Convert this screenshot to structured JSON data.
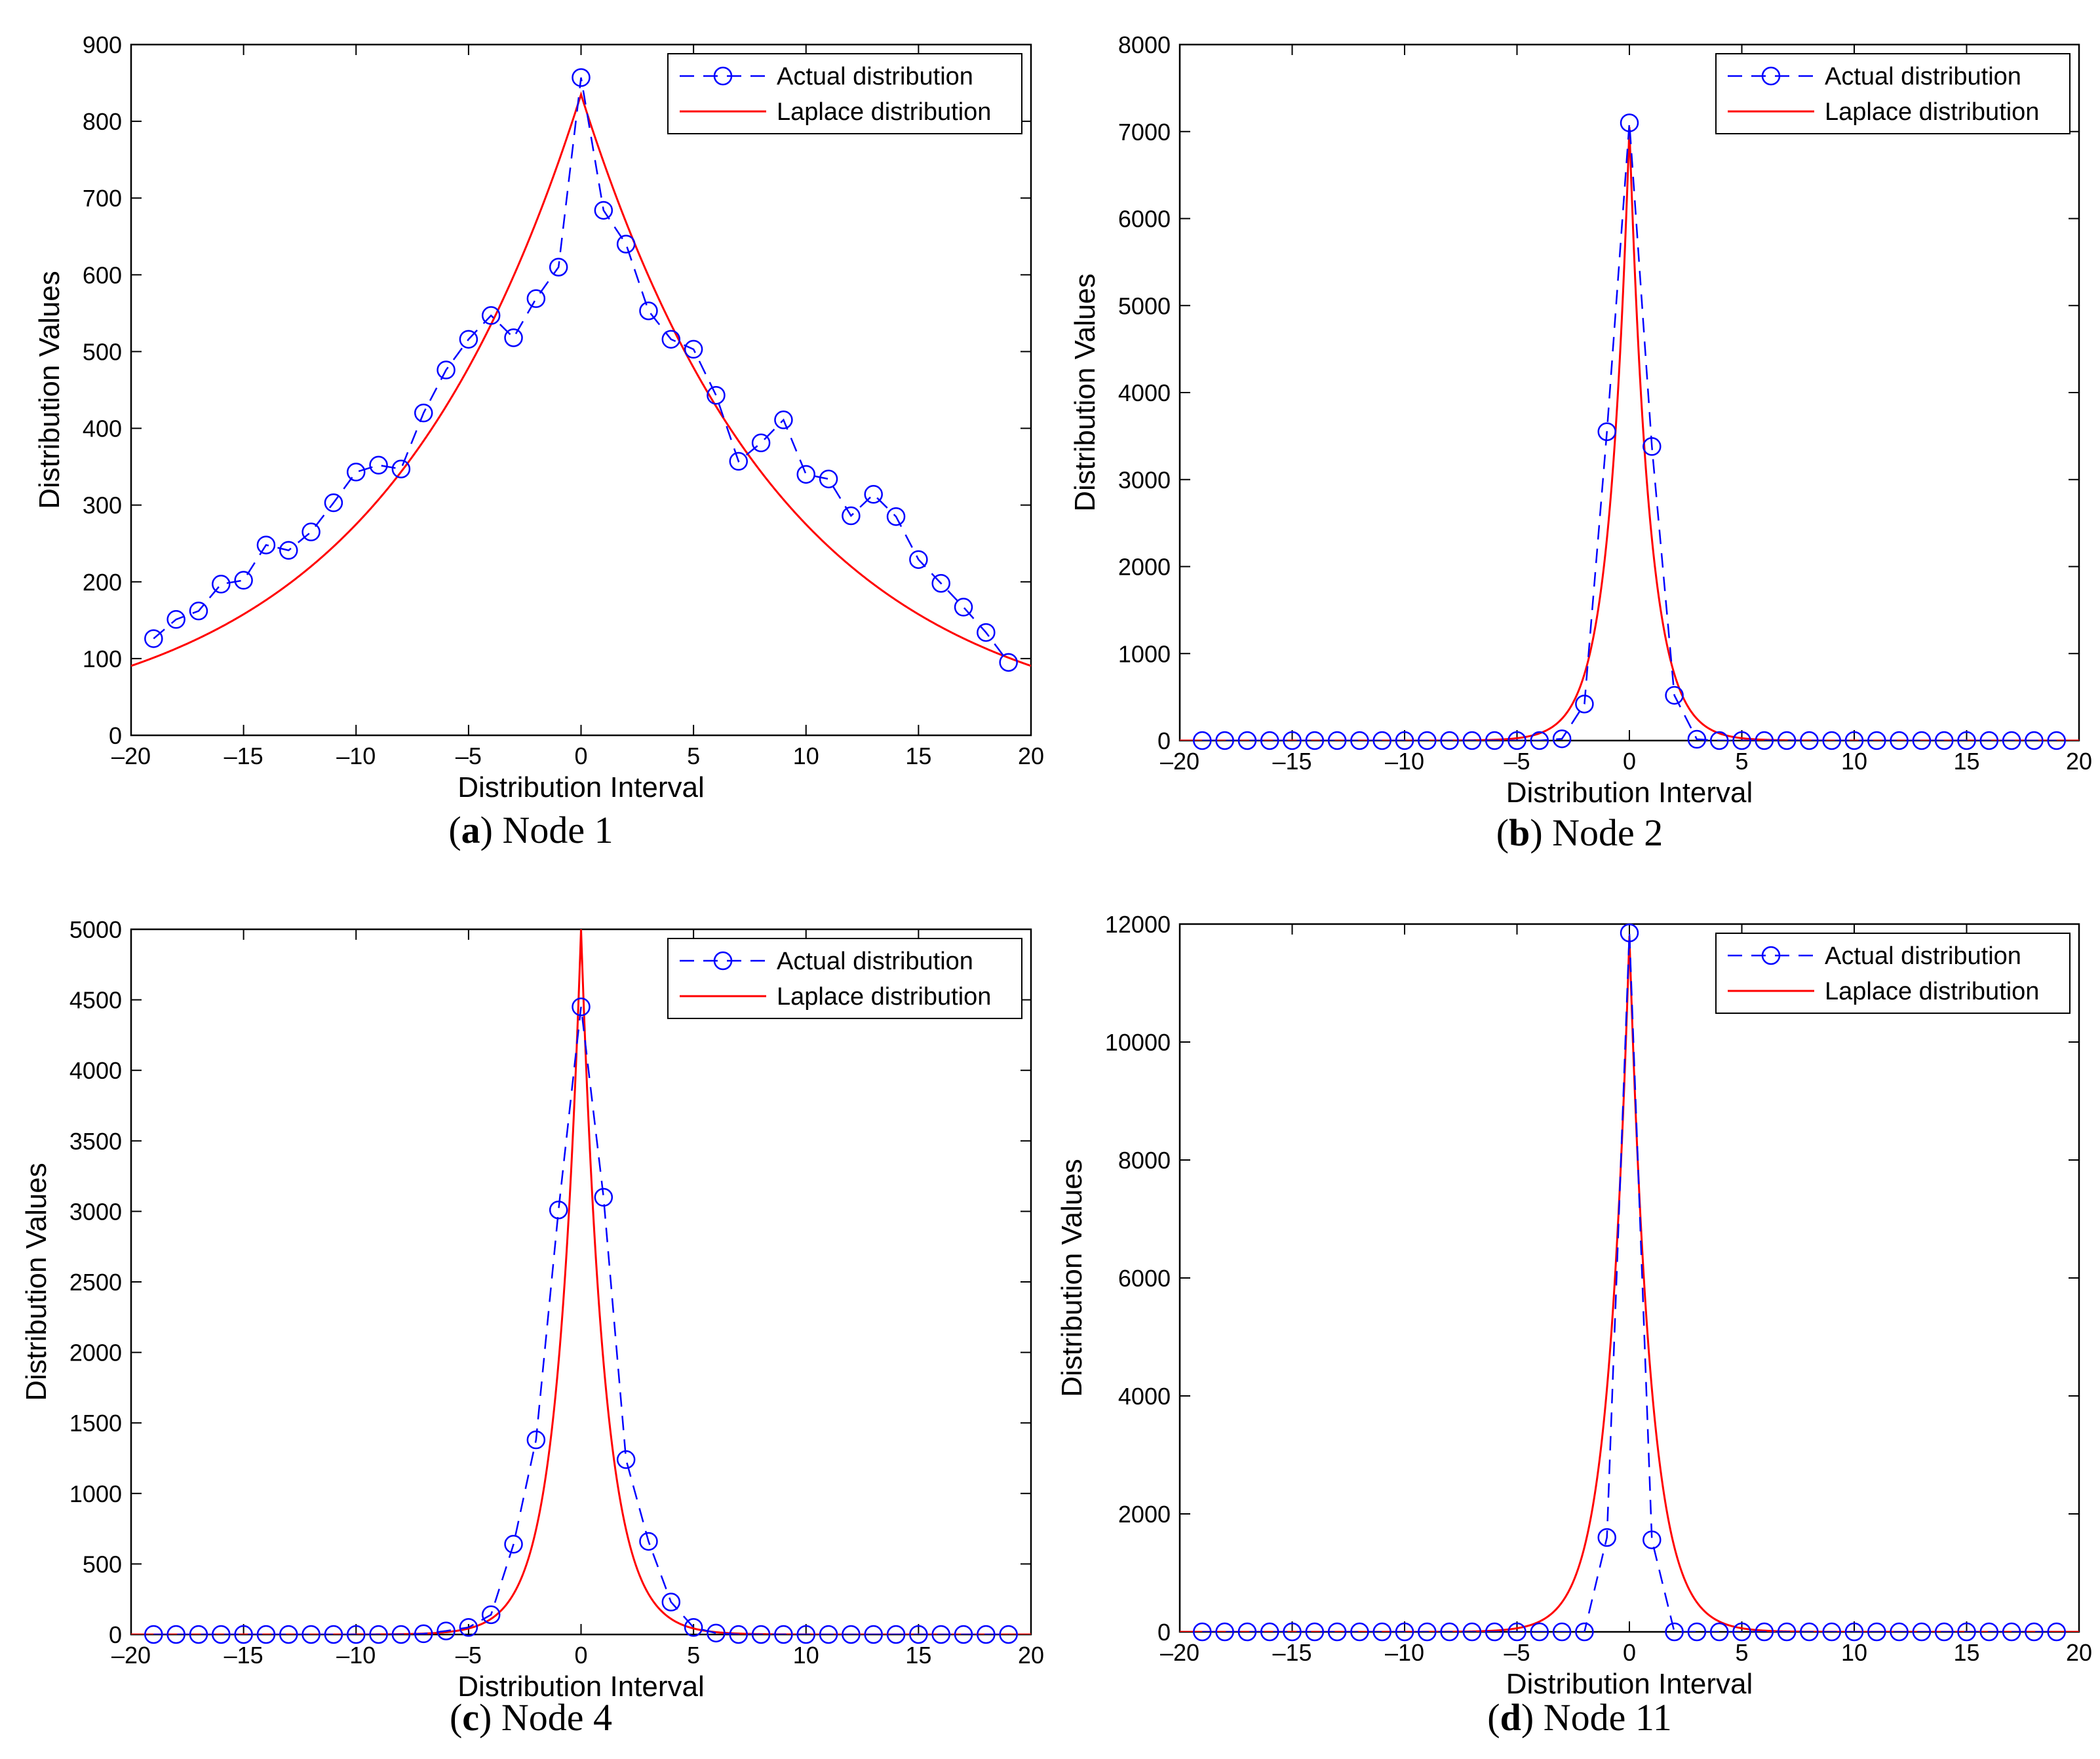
{
  "figure": {
    "panels": [
      {
        "letter": "a",
        "node_label": "Node 1"
      },
      {
        "letter": "b",
        "node_label": "Node 2"
      },
      {
        "letter": "c",
        "node_label": "Node 4"
      },
      {
        "letter": "d",
        "node_label": "Node 11"
      }
    ]
  },
  "colors": {
    "actual": "#0000ff",
    "laplace": "#ff0000",
    "axis": "#000000"
  },
  "chart_data": [
    {
      "type": "line",
      "title": "",
      "caption_letter": "a",
      "caption_text": "Node 1",
      "xlabel": "Distribution Interval",
      "ylabel": "Distribution Values",
      "xlim": [
        -20,
        20
      ],
      "ylim": [
        0,
        900
      ],
      "xticks": [
        -20,
        -15,
        -10,
        -5,
        0,
        5,
        10,
        15,
        20
      ],
      "xtick_labels": [
        "–20",
        "–15",
        "–10",
        "–5",
        "0",
        "5",
        "10",
        "15",
        "20"
      ],
      "yticks": [
        0,
        100,
        200,
        300,
        400,
        500,
        600,
        700,
        800,
        900
      ],
      "ytick_labels": [
        "0",
        "100",
        "200",
        "300",
        "400",
        "500",
        "600",
        "700",
        "800",
        "900"
      ],
      "legend_location": "top-right",
      "series": [
        {
          "name": "Actual distribution",
          "style": "dashed-circle",
          "x": [
            -19,
            -18,
            -17,
            -16,
            -15,
            -14,
            -13,
            -12,
            -11,
            -10,
            -9,
            -8,
            -7,
            -6,
            -5,
            -4,
            -3,
            -2,
            -1,
            0,
            1,
            2,
            3,
            4,
            5,
            6,
            7,
            8,
            9,
            10,
            11,
            12,
            13,
            14,
            15,
            16,
            17,
            18,
            19
          ],
          "values": [
            126,
            151,
            162,
            197,
            202,
            248,
            241,
            265,
            303,
            343,
            352,
            347,
            420,
            476,
            516,
            547,
            518,
            569,
            610,
            857,
            684,
            640,
            553,
            516,
            503,
            443,
            357,
            381,
            411,
            340,
            334,
            286,
            314,
            285,
            229,
            198,
            167,
            134,
            95
          ]
        },
        {
          "name": "Laplace distribution",
          "style": "solid",
          "function": "laplace",
          "amplitude": 835,
          "scale": 9.0
        }
      ]
    },
    {
      "type": "line",
      "title": "",
      "caption_letter": "b",
      "caption_text": "Node 2",
      "xlabel": "Distribution Interval",
      "ylabel": "Distribution Values",
      "xlim": [
        -20,
        20
      ],
      "ylim": [
        0,
        8000
      ],
      "xticks": [
        -20,
        -15,
        -10,
        -5,
        0,
        5,
        10,
        15,
        20
      ],
      "xtick_labels": [
        "–20",
        "–15",
        "–10",
        "–5",
        "0",
        "5",
        "10",
        "15",
        "20"
      ],
      "yticks": [
        0,
        1000,
        2000,
        3000,
        4000,
        5000,
        6000,
        7000,
        8000
      ],
      "ytick_labels": [
        "0",
        "1000",
        "2000",
        "3000",
        "4000",
        "5000",
        "6000",
        "7000",
        "8000"
      ],
      "legend_location": "top-right",
      "series": [
        {
          "name": "Actual distribution",
          "style": "dashed-circle",
          "x": [
            -19,
            -18,
            -17,
            -16,
            -15,
            -14,
            -13,
            -12,
            -11,
            -10,
            -9,
            -8,
            -7,
            -6,
            -5,
            -4,
            -3,
            -2,
            -1,
            0,
            1,
            2,
            3,
            4,
            5,
            6,
            7,
            8,
            9,
            10,
            11,
            12,
            13,
            14,
            15,
            16,
            17,
            18,
            19
          ],
          "values": [
            0,
            0,
            0,
            0,
            0,
            0,
            0,
            0,
            0,
            0,
            0,
            0,
            0,
            0,
            0,
            0,
            20,
            420,
            3550,
            7100,
            3380,
            520,
            15,
            0,
            0,
            0,
            0,
            0,
            0,
            0,
            0,
            0,
            0,
            0,
            0,
            0,
            0,
            0,
            0
          ]
        },
        {
          "name": "Laplace distribution",
          "style": "solid",
          "function": "laplace",
          "amplitude": 7050,
          "scale": 0.9
        }
      ]
    },
    {
      "type": "line",
      "title": "",
      "caption_letter": "c",
      "caption_text": "Node 4",
      "xlabel": "Distribution Interval",
      "ylabel": "Distribution Values",
      "xlim": [
        -20,
        20
      ],
      "ylim": [
        0,
        5000
      ],
      "xticks": [
        -20,
        -15,
        -10,
        -5,
        0,
        5,
        10,
        15,
        20
      ],
      "xtick_labels": [
        "–20",
        "–15",
        "–10",
        "–5",
        "0",
        "5",
        "10",
        "15",
        "20"
      ],
      "yticks": [
        0,
        500,
        1000,
        1500,
        2000,
        2500,
        3000,
        3500,
        4000,
        4500,
        5000
      ],
      "ytick_labels": [
        "0",
        "500",
        "1000",
        "1500",
        "2000",
        "2500",
        "3000",
        "3500",
        "4000",
        "4500",
        "5000"
      ],
      "legend_location": "top-right",
      "series": [
        {
          "name": "Actual distribution",
          "style": "dashed-circle",
          "x": [
            -19,
            -18,
            -17,
            -16,
            -15,
            -14,
            -13,
            -12,
            -11,
            -10,
            -9,
            -8,
            -7,
            -6,
            -5,
            -4,
            -3,
            -2,
            -1,
            0,
            1,
            2,
            3,
            4,
            5,
            6,
            7,
            8,
            9,
            10,
            11,
            12,
            13,
            14,
            15,
            16,
            17,
            18,
            19
          ],
          "values": [
            0,
            0,
            0,
            0,
            0,
            0,
            0,
            0,
            0,
            0,
            0,
            0,
            5,
            25,
            50,
            140,
            640,
            1380,
            3010,
            4450,
            3100,
            1240,
            660,
            230,
            50,
            10,
            0,
            0,
            0,
            0,
            0,
            0,
            0,
            0,
            0,
            0,
            0,
            0,
            0
          ]
        },
        {
          "name": "Laplace distribution",
          "style": "solid",
          "function": "laplace",
          "amplitude": 5000,
          "scale": 1.05
        }
      ]
    },
    {
      "type": "line",
      "title": "",
      "caption_letter": "d",
      "caption_text": "Node 11",
      "xlabel": "Distribution Interval",
      "ylabel": "Distribution Values",
      "xlim": [
        -20,
        20
      ],
      "ylim": [
        0,
        12000
      ],
      "xticks": [
        -20,
        -15,
        -10,
        -5,
        0,
        5,
        10,
        15,
        20
      ],
      "xtick_labels": [
        "–20",
        "–15",
        "–10",
        "–5",
        "0",
        "5",
        "10",
        "15",
        "20"
      ],
      "yticks": [
        0,
        2000,
        4000,
        6000,
        8000,
        10000,
        12000
      ],
      "ytick_labels": [
        "0",
        "2000",
        "4000",
        "6000",
        "8000",
        "10000",
        "12000"
      ],
      "legend_location": "top-right",
      "series": [
        {
          "name": "Actual distribution",
          "style": "dashed-circle",
          "x": [
            -19,
            -18,
            -17,
            -16,
            -15,
            -14,
            -13,
            -12,
            -11,
            -10,
            -9,
            -8,
            -7,
            -6,
            -5,
            -4,
            -3,
            -2,
            -1,
            0,
            1,
            2,
            3,
            4,
            5,
            6,
            7,
            8,
            9,
            10,
            11,
            12,
            13,
            14,
            15,
            16,
            17,
            18,
            19
          ],
          "values": [
            0,
            0,
            0,
            0,
            0,
            0,
            0,
            0,
            0,
            0,
            0,
            0,
            0,
            0,
            0,
            0,
            0,
            0,
            1600,
            11850,
            1560,
            0,
            0,
            0,
            0,
            0,
            0,
            0,
            0,
            0,
            0,
            0,
            0,
            0,
            0,
            0,
            0,
            0,
            0
          ]
        },
        {
          "name": "Laplace distribution",
          "style": "solid",
          "function": "laplace",
          "amplitude": 11800,
          "scale": 0.95
        }
      ]
    }
  ]
}
